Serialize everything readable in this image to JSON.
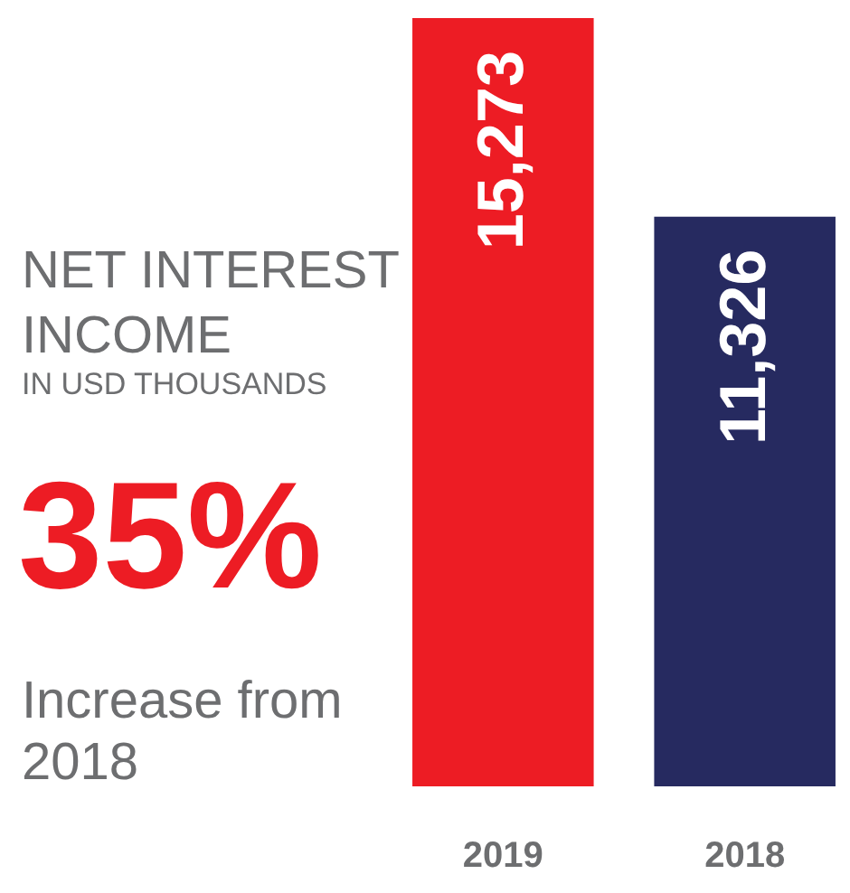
{
  "chart_data": {
    "type": "bar",
    "title": "NET INTEREST INCOME",
    "subtitle": "IN USD THOUSANDS",
    "categories": [
      "2019",
      "2018"
    ],
    "values": [
      15273,
      11326
    ],
    "colors": [
      "#ed1c24",
      "#262a60"
    ],
    "value_labels": [
      "15,273",
      "11,326"
    ],
    "annotations": [
      "35%",
      "Increase from 2018"
    ],
    "grid": false
  }
}
